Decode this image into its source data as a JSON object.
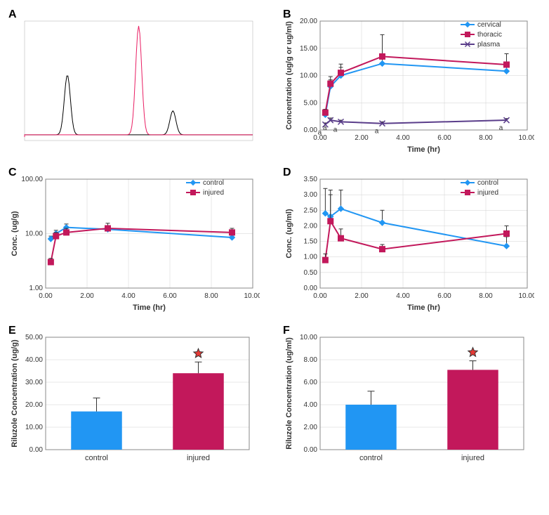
{
  "panels": {
    "A": {
      "type": "chromatogram",
      "background_color": "#ffffff",
      "series": [
        {
          "name": "black",
          "color": "#000000",
          "peaks": [
            {
              "x": 1.5,
              "h": 0.55
            },
            {
              "x": 5.2,
              "h": 0.22
            }
          ]
        },
        {
          "name": "red",
          "color": "#e91e63",
          "peaks": [
            {
              "x": 4.0,
              "h": 1.0
            }
          ]
        }
      ],
      "xlim": [
        0,
        8
      ]
    },
    "B": {
      "type": "line",
      "xlabel": "Time (hr)",
      "ylabel": "Concentration (ug/g or ug/ml)",
      "xlim": [
        0,
        10
      ],
      "xtick_step": 2,
      "ylim": [
        0,
        20
      ],
      "ytick_step": 5,
      "legend_items": [
        "cervical",
        "thoracic",
        "plasma"
      ],
      "series": [
        {
          "name": "cervical",
          "color": "#2196f3",
          "marker": "diamond",
          "x": [
            0.25,
            0.5,
            1,
            3,
            9
          ],
          "y": [
            2.8,
            8.0,
            10.0,
            12.2,
            10.8
          ],
          "err": [
            0.5,
            1.2,
            1.5,
            1.8,
            1.5
          ]
        },
        {
          "name": "thoracic",
          "color": "#c2185b",
          "marker": "square",
          "x": [
            0.25,
            0.5,
            1,
            3,
            9
          ],
          "y": [
            3.2,
            8.5,
            10.5,
            13.5,
            12.0
          ],
          "err": [
            0.6,
            1.3,
            1.6,
            4.0,
            2.0
          ]
        },
        {
          "name": "plasma",
          "color": "#5a3d8a",
          "marker": "x",
          "x": [
            0.25,
            0.5,
            1,
            3,
            9
          ],
          "y": [
            1.0,
            1.8,
            1.5,
            1.2,
            1.8
          ],
          "err": [
            0.3,
            0.4,
            0.3,
            0.3,
            0.3
          ],
          "annot": [
            "a",
            "a",
            "a",
            "a",
            "a"
          ]
        }
      ],
      "grid_color": "#d0d0d0"
    },
    "C": {
      "type": "line",
      "xlabel": "Time (hr)",
      "ylabel": "Conc. (ug/g)",
      "xlim": [
        0,
        10
      ],
      "xtick_step": 2,
      "ylim": [
        1,
        100
      ],
      "yscale": "log",
      "yticks": [
        1,
        10,
        100
      ],
      "ytick_labels": [
        "1.00",
        "10.00",
        "100.00"
      ],
      "legend_items": [
        "control",
        "injured"
      ],
      "series": [
        {
          "name": "control",
          "color": "#2196f3",
          "marker": "diamond",
          "x": [
            0.25,
            0.5,
            1,
            3,
            9
          ],
          "y": [
            8.0,
            10.0,
            13.0,
            12.0,
            8.5
          ],
          "err": [
            1.0,
            1.5,
            2.0,
            2.0,
            1.5
          ]
        },
        {
          "name": "injured",
          "color": "#c2185b",
          "marker": "square",
          "x": [
            0.25,
            0.5,
            1,
            3,
            9
          ],
          "y": [
            3.0,
            9.0,
            10.5,
            12.5,
            10.5
          ],
          "err": [
            0.5,
            1.5,
            2.0,
            3.0,
            2.0
          ]
        }
      ],
      "grid_color": "#d0d0d0"
    },
    "D": {
      "type": "line",
      "xlabel": "Time (hr)",
      "ylabel": "Conc. (ug/ml)",
      "xlim": [
        0,
        10
      ],
      "xtick_step": 2,
      "ylim": [
        0,
        3.5
      ],
      "ytick_step": 0.5,
      "legend_items": [
        "control",
        "injured"
      ],
      "series": [
        {
          "name": "control",
          "color": "#2196f3",
          "marker": "diamond",
          "x": [
            0.25,
            0.5,
            1,
            3,
            9
          ],
          "y": [
            2.4,
            2.3,
            2.55,
            2.1,
            1.35
          ],
          "err": [
            0.8,
            0.7,
            0.6,
            0.4,
            0.3
          ]
        },
        {
          "name": "injured",
          "color": "#c2185b",
          "marker": "square",
          "x": [
            0.25,
            0.5,
            1,
            3,
            9
          ],
          "y": [
            0.9,
            2.15,
            1.6,
            1.25,
            1.75
          ],
          "err": [
            0.2,
            1.0,
            0.3,
            0.15,
            0.25
          ]
        }
      ],
      "grid_color": "#d0d0d0"
    },
    "E": {
      "type": "bar",
      "ylabel": "Riluzole Concentration (ug/g)",
      "ylim": [
        0,
        50
      ],
      "ytick_step": 10,
      "categories": [
        "control",
        "injured"
      ],
      "values": [
        17.0,
        34.0
      ],
      "errors": [
        6.0,
        5.0
      ],
      "bar_colors": [
        "#2196f3",
        "#c2185b"
      ],
      "signif": [
        false,
        true
      ],
      "star_color": "#e53935",
      "bar_width": 0.5,
      "grid_color": "#d0d0d0"
    },
    "F": {
      "type": "bar",
      "ylabel": "Riluzole Concentration (ug/ml)",
      "ylim": [
        0,
        10
      ],
      "ytick_step": 2,
      "categories": [
        "control",
        "injured"
      ],
      "values": [
        4.0,
        7.1
      ],
      "errors": [
        1.2,
        0.8
      ],
      "bar_colors": [
        "#2196f3",
        "#c2185b"
      ],
      "signif": [
        false,
        true
      ],
      "star_color": "#e53935",
      "bar_width": 0.5,
      "grid_color": "#d0d0d0"
    }
  },
  "labels": {
    "A": "A",
    "B": "B",
    "C": "C",
    "D": "D",
    "E": "E",
    "F": "F"
  }
}
